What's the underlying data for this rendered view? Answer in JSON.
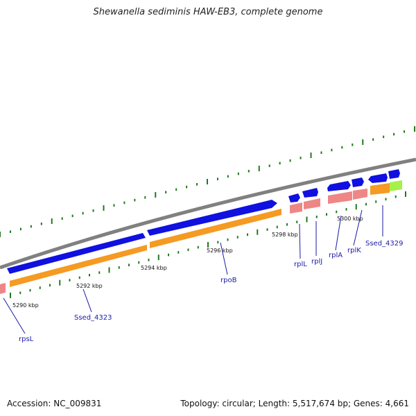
{
  "title": "Shewanella sediminis HAW-EB3, complete genome",
  "accession_text": "Accession: NC_009831",
  "stats_text": "Topology: circular; Length: 5,517,674 bp; Genes: 4,661",
  "colors": {
    "backbone": "#808080",
    "cds_strand": "#1010e0",
    "cds_track": "#f59a22",
    "rna_track": "#ee8686",
    "highlight": "#a6f04a",
    "tick": "#1f7a1f",
    "gene_label": "#1a1aa6"
  },
  "kbp_labels": [
    "5290 kbp",
    "5292 kbp",
    "5294 kbp",
    "5296 kbp",
    "5298 kbp",
    "5300 kbp"
  ],
  "gene_labels": [
    "rpsL",
    "Ssed_4323",
    "rpoB",
    "rplL",
    "rplJ",
    "rplA",
    "rplK",
    "Ssed_4329"
  ]
}
